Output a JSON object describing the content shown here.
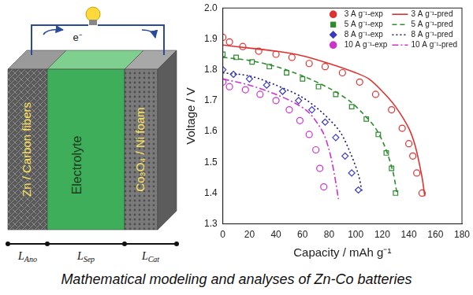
{
  "diagram": {
    "anode": "Zn / Carbon fibers",
    "separator": "Electrolyte",
    "cathode": "Co₃O₄ / Ni foam",
    "electron": "e⁻",
    "lengths": [
      {
        "symbol": "L",
        "subscript": "Ano"
      },
      {
        "symbol": "L",
        "subscript": "Sep"
      },
      {
        "symbol": "L",
        "subscript": "Cat"
      }
    ]
  },
  "caption": "Mathematical modeling and analyses of Zn-Co batteries",
  "chart_data": {
    "type": "scatter",
    "x_label": "Capacity / mAh g⁻¹",
    "y_label": "Voltage / V",
    "xlim": [
      0,
      180
    ],
    "xticks": [
      0,
      20,
      40,
      60,
      80,
      100,
      120,
      140,
      160,
      180
    ],
    "ylim": [
      1.3,
      2.0
    ],
    "yticks": [
      1.3,
      1.4,
      1.5,
      1.6,
      1.7,
      1.8,
      1.9,
      {
        "value": 2.0,
        "label": "2.0"
      }
    ],
    "grid": false,
    "legend": "top-right",
    "series": [
      {
        "name": "3 A g⁻¹-exp",
        "type": "scatter",
        "marker": "circle",
        "color": "#e03030",
        "x": [
          0,
          5,
          15,
          27,
          40,
          52,
          65,
          77,
          90,
          103,
          115,
          127,
          135,
          140,
          143,
          146,
          150
        ],
        "values": [
          1.905,
          1.89,
          1.875,
          1.86,
          1.85,
          1.84,
          1.82,
          1.81,
          1.79,
          1.76,
          1.72,
          1.67,
          1.61,
          1.56,
          1.52,
          1.465,
          1.4
        ]
      },
      {
        "name": "5 A g⁻¹-exp",
        "type": "scatter",
        "marker": "square",
        "color": "#2e8b2e",
        "x": [
          0,
          10,
          22,
          35,
          48,
          60,
          72,
          85,
          97,
          108,
          117,
          123,
          127,
          130
        ],
        "values": [
          1.85,
          1.84,
          1.825,
          1.81,
          1.79,
          1.77,
          1.745,
          1.72,
          1.68,
          1.64,
          1.59,
          1.53,
          1.48,
          1.4
        ]
      },
      {
        "name": "8 A g⁻¹-exp",
        "type": "scatter",
        "marker": "diamond",
        "color": "#3a3ac0",
        "x": [
          0,
          8,
          20,
          33,
          45,
          57,
          67,
          77,
          85,
          92,
          97,
          102
        ],
        "values": [
          1.8,
          1.785,
          1.77,
          1.75,
          1.73,
          1.7,
          1.67,
          1.63,
          1.58,
          1.52,
          1.465,
          1.41
        ]
      },
      {
        "name": "10 A g⁻¹-exp",
        "type": "scatter",
        "marker": "circle",
        "color": "#cc33cc",
        "x": [
          0,
          5,
          17,
          28,
          40,
          50,
          58,
          65,
          70,
          73,
          76
        ],
        "values": [
          1.76,
          1.745,
          1.735,
          1.72,
          1.7,
          1.67,
          1.635,
          1.59,
          1.54,
          1.48,
          1.42
        ]
      },
      {
        "name": "3 A g⁻¹-pred",
        "type": "line",
        "line_style": "solid",
        "color": "#e03030",
        "x": [
          0,
          20,
          40,
          60,
          80,
          100,
          110,
          120,
          130,
          140,
          145,
          150,
          152
        ],
        "values": [
          1.88,
          1.87,
          1.86,
          1.845,
          1.82,
          1.79,
          1.77,
          1.73,
          1.68,
          1.61,
          1.55,
          1.45,
          1.39
        ]
      },
      {
        "name": "5 A g⁻¹-pred",
        "type": "line",
        "line_style": "dashed",
        "color": "#2e8b2e",
        "x": [
          0,
          20,
          40,
          60,
          80,
          95,
          105,
          115,
          122,
          128,
          131
        ],
        "values": [
          1.84,
          1.83,
          1.81,
          1.78,
          1.74,
          1.7,
          1.66,
          1.61,
          1.55,
          1.47,
          1.4
        ]
      },
      {
        "name": "8 A g⁻¹-pred",
        "type": "line",
        "line_style": "dotted",
        "color": "#1a1a6e",
        "x": [
          0,
          20,
          40,
          60,
          75,
          88,
          96,
          102,
          105
        ],
        "values": [
          1.79,
          1.78,
          1.75,
          1.71,
          1.66,
          1.6,
          1.53,
          1.46,
          1.4
        ]
      },
      {
        "name": "10 A g⁻¹-pred",
        "type": "line",
        "line_style": "dashdot",
        "color": "#cc33cc",
        "x": [
          0,
          20,
          40,
          55,
          65,
          75,
          80,
          84,
          87
        ],
        "values": [
          1.77,
          1.75,
          1.72,
          1.69,
          1.66,
          1.6,
          1.54,
          1.46,
          1.38
        ]
      }
    ]
  }
}
